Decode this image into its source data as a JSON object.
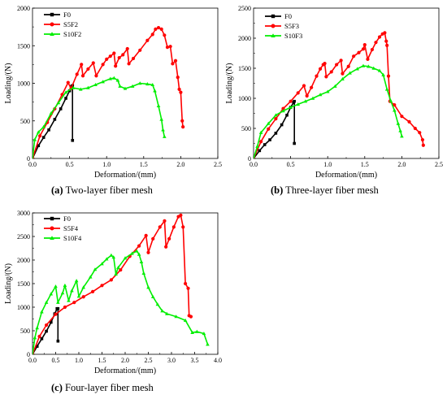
{
  "chart_data": [
    {
      "type": "line",
      "caption_label": "(a)",
      "caption_text": "Two-layer fiber mesh",
      "xlabel": "Deformation/(mm)",
      "ylabel": "Loading/(N)",
      "xlim": [
        0,
        2.5
      ],
      "ylim": [
        0,
        2000
      ],
      "xticks": [
        "0.0",
        "0.5",
        "1.0",
        "1.5",
        "2.0",
        "2.5"
      ],
      "yticks": [
        "0",
        "500",
        "1000",
        "1500",
        "2000"
      ],
      "legend_position": "top-left",
      "series": [
        {
          "name": "F0",
          "color": "#000000",
          "marker": "square",
          "points": [
            [
              0,
              0
            ],
            [
              0.08,
              170
            ],
            [
              0.15,
              280
            ],
            [
              0.22,
              380
            ],
            [
              0.3,
              520
            ],
            [
              0.38,
              660
            ],
            [
              0.45,
              800
            ],
            [
              0.5,
              900
            ],
            [
              0.53,
              960
            ],
            [
              0.54,
              970
            ],
            [
              0.54,
              240
            ]
          ]
        },
        {
          "name": "S5F2",
          "color": "#ff0000",
          "marker": "circle",
          "points": [
            [
              0,
              0
            ],
            [
              0.1,
              300
            ],
            [
              0.2,
              480
            ],
            [
              0.3,
              660
            ],
            [
              0.4,
              850
            ],
            [
              0.48,
              1010
            ],
            [
              0.52,
              930
            ],
            [
              0.6,
              1120
            ],
            [
              0.66,
              1250
            ],
            [
              0.68,
              1100
            ],
            [
              0.75,
              1190
            ],
            [
              0.82,
              1270
            ],
            [
              0.86,
              1100
            ],
            [
              0.95,
              1250
            ],
            [
              1.0,
              1320
            ],
            [
              1.05,
              1360
            ],
            [
              1.1,
              1400
            ],
            [
              1.12,
              1230
            ],
            [
              1.17,
              1340
            ],
            [
              1.22,
              1380
            ],
            [
              1.28,
              1460
            ],
            [
              1.3,
              1260
            ],
            [
              1.36,
              1330
            ],
            [
              1.45,
              1440
            ],
            [
              1.55,
              1570
            ],
            [
              1.62,
              1650
            ],
            [
              1.66,
              1720
            ],
            [
              1.7,
              1740
            ],
            [
              1.74,
              1720
            ],
            [
              1.78,
              1640
            ],
            [
              1.82,
              1480
            ],
            [
              1.86,
              1490
            ],
            [
              1.89,
              1260
            ],
            [
              1.93,
              1300
            ],
            [
              1.96,
              1080
            ],
            [
              1.98,
              920
            ],
            [
              2.0,
              880
            ],
            [
              2.02,
              500
            ],
            [
              2.03,
              420
            ]
          ]
        },
        {
          "name": "S10F2",
          "color": "#00ee00",
          "marker": "triangle",
          "points": [
            [
              0,
              0
            ],
            [
              0.03,
              250
            ],
            [
              0.08,
              350
            ],
            [
              0.15,
              420
            ],
            [
              0.25,
              600
            ],
            [
              0.35,
              740
            ],
            [
              0.45,
              880
            ],
            [
              0.55,
              940
            ],
            [
              0.65,
              920
            ],
            [
              0.75,
              940
            ],
            [
              0.85,
              980
            ],
            [
              0.95,
              1020
            ],
            [
              1.05,
              1060
            ],
            [
              1.1,
              1070
            ],
            [
              1.15,
              1040
            ],
            [
              1.18,
              960
            ],
            [
              1.25,
              930
            ],
            [
              1.35,
              960
            ],
            [
              1.45,
              1000
            ],
            [
              1.55,
              990
            ],
            [
              1.62,
              980
            ],
            [
              1.65,
              900
            ],
            [
              1.7,
              700
            ],
            [
              1.74,
              520
            ],
            [
              1.76,
              380
            ],
            [
              1.78,
              290
            ]
          ]
        }
      ]
    },
    {
      "type": "line",
      "caption_label": "(b)",
      "caption_text": "Three-layer fiber mesh",
      "xlabel": "Deformation/(mm)",
      "ylabel": "Loading/(N)",
      "xlim": [
        0,
        2.5
      ],
      "ylim": [
        0,
        2500
      ],
      "xticks": [
        "0.0",
        "0.5",
        "1.0",
        "1.5",
        "2.0",
        "2.5"
      ],
      "yticks": [
        "0",
        "500",
        "1000",
        "1500",
        "2000",
        "2500"
      ],
      "legend_position": "top-left",
      "series": [
        {
          "name": "F0",
          "color": "#000000",
          "marker": "square",
          "points": [
            [
              0,
              0
            ],
            [
              0.08,
              130
            ],
            [
              0.15,
              230
            ],
            [
              0.22,
              310
            ],
            [
              0.3,
              420
            ],
            [
              0.38,
              560
            ],
            [
              0.45,
              720
            ],
            [
              0.5,
              850
            ],
            [
              0.54,
              930
            ],
            [
              0.55,
              950
            ],
            [
              0.55,
              250
            ]
          ]
        },
        {
          "name": "S5F3",
          "color": "#ff0000",
          "marker": "circle",
          "points": [
            [
              0,
              0
            ],
            [
              0.1,
              280
            ],
            [
              0.2,
              490
            ],
            [
              0.3,
              660
            ],
            [
              0.4,
              830
            ],
            [
              0.5,
              950
            ],
            [
              0.6,
              1090
            ],
            [
              0.68,
              1210
            ],
            [
              0.72,
              1040
            ],
            [
              0.78,
              1180
            ],
            [
              0.85,
              1370
            ],
            [
              0.9,
              1490
            ],
            [
              0.94,
              1560
            ],
            [
              0.96,
              1580
            ],
            [
              0.98,
              1360
            ],
            [
              1.05,
              1440
            ],
            [
              1.12,
              1560
            ],
            [
              1.18,
              1630
            ],
            [
              1.2,
              1410
            ],
            [
              1.28,
              1530
            ],
            [
              1.35,
              1700
            ],
            [
              1.42,
              1760
            ],
            [
              1.48,
              1820
            ],
            [
              1.5,
              1890
            ],
            [
              1.54,
              1650
            ],
            [
              1.6,
              1810
            ],
            [
              1.65,
              1930
            ],
            [
              1.7,
              2020
            ],
            [
              1.74,
              2070
            ],
            [
              1.77,
              2090
            ],
            [
              1.79,
              1950
            ],
            [
              1.8,
              1880
            ],
            [
              1.82,
              1370
            ],
            [
              1.84,
              950
            ],
            [
              1.9,
              890
            ],
            [
              2.0,
              700
            ],
            [
              2.1,
              610
            ],
            [
              2.18,
              500
            ],
            [
              2.24,
              430
            ],
            [
              2.28,
              310
            ],
            [
              2.29,
              220
            ]
          ]
        },
        {
          "name": "S10F3",
          "color": "#00ee00",
          "marker": "triangle",
          "points": [
            [
              0,
              0
            ],
            [
              0.05,
              200
            ],
            [
              0.1,
              430
            ],
            [
              0.2,
              580
            ],
            [
              0.3,
              720
            ],
            [
              0.4,
              790
            ],
            [
              0.5,
              850
            ],
            [
              0.6,
              900
            ],
            [
              0.7,
              950
            ],
            [
              0.8,
              1000
            ],
            [
              0.9,
              1060
            ],
            [
              1.0,
              1110
            ],
            [
              1.1,
              1200
            ],
            [
              1.2,
              1320
            ],
            [
              1.3,
              1420
            ],
            [
              1.4,
              1490
            ],
            [
              1.48,
              1540
            ],
            [
              1.55,
              1530
            ],
            [
              1.62,
              1500
            ],
            [
              1.7,
              1460
            ],
            [
              1.75,
              1390
            ],
            [
              1.8,
              1150
            ],
            [
              1.85,
              960
            ],
            [
              1.9,
              800
            ],
            [
              1.95,
              580
            ],
            [
              1.98,
              460
            ],
            [
              2.0,
              370
            ]
          ]
        }
      ]
    },
    {
      "type": "line",
      "caption_label": "(c)",
      "caption_text": "Four-layer fiber mesh",
      "xlabel": "Deformation/(mm)",
      "ylabel": "Loading/(N)",
      "xlim": [
        0,
        4.0
      ],
      "ylim": [
        0,
        3000
      ],
      "xticks": [
        "0.0",
        "0.5",
        "1.0",
        "1.5",
        "2.0",
        "2.5",
        "3.0",
        "3.5",
        "4.0"
      ],
      "yticks": [
        "0",
        "500",
        "1000",
        "1500",
        "2000",
        "2500",
        "3000"
      ],
      "legend_position": "top-left",
      "series": [
        {
          "name": "F0",
          "color": "#000000",
          "marker": "square",
          "points": [
            [
              0,
              0
            ],
            [
              0.1,
              170
            ],
            [
              0.2,
              330
            ],
            [
              0.3,
              490
            ],
            [
              0.4,
              680
            ],
            [
              0.48,
              860
            ],
            [
              0.53,
              970
            ],
            [
              0.55,
              970
            ],
            [
              0.55,
              280
            ]
          ]
        },
        {
          "name": "S5F4",
          "color": "#ff0000",
          "marker": "circle",
          "points": [
            [
              0,
              0
            ],
            [
              0.15,
              380
            ],
            [
              0.3,
              620
            ],
            [
              0.5,
              850
            ],
            [
              0.7,
              1000
            ],
            [
              0.9,
              1100
            ],
            [
              1.1,
              1220
            ],
            [
              1.3,
              1330
            ],
            [
              1.5,
              1460
            ],
            [
              1.7,
              1580
            ],
            [
              1.9,
              1790
            ],
            [
              2.1,
              2080
            ],
            [
              2.3,
              2300
            ],
            [
              2.45,
              2520
            ],
            [
              2.5,
              2160
            ],
            [
              2.6,
              2450
            ],
            [
              2.75,
              2700
            ],
            [
              2.85,
              2830
            ],
            [
              2.88,
              2280
            ],
            [
              2.95,
              2450
            ],
            [
              3.05,
              2700
            ],
            [
              3.15,
              2920
            ],
            [
              3.2,
              2950
            ],
            [
              3.25,
              2700
            ],
            [
              3.3,
              1500
            ],
            [
              3.36,
              1400
            ],
            [
              3.38,
              820
            ],
            [
              3.42,
              800
            ]
          ]
        },
        {
          "name": "S10F4",
          "color": "#00ee00",
          "marker": "triangle",
          "points": [
            [
              0,
              0
            ],
            [
              0.05,
              350
            ],
            [
              0.1,
              560
            ],
            [
              0.2,
              900
            ],
            [
              0.3,
              1100
            ],
            [
              0.4,
              1280
            ],
            [
              0.5,
              1440
            ],
            [
              0.55,
              1100
            ],
            [
              0.65,
              1300
            ],
            [
              0.7,
              1460
            ],
            [
              0.78,
              1140
            ],
            [
              0.85,
              1350
            ],
            [
              0.95,
              1560
            ],
            [
              1.0,
              1230
            ],
            [
              1.1,
              1420
            ],
            [
              1.25,
              1640
            ],
            [
              1.35,
              1800
            ],
            [
              1.5,
              1920
            ],
            [
              1.6,
              2020
            ],
            [
              1.7,
              2100
            ],
            [
              1.75,
              2060
            ],
            [
              1.8,
              1700
            ],
            [
              1.85,
              1840
            ],
            [
              2.0,
              2040
            ],
            [
              2.15,
              2140
            ],
            [
              2.25,
              2190
            ],
            [
              2.3,
              2120
            ],
            [
              2.35,
              1960
            ],
            [
              2.4,
              1720
            ],
            [
              2.5,
              1420
            ],
            [
              2.6,
              1220
            ],
            [
              2.7,
              1060
            ],
            [
              2.8,
              920
            ],
            [
              2.9,
              860
            ],
            [
              3.1,
              800
            ],
            [
              3.3,
              720
            ],
            [
              3.45,
              460
            ],
            [
              3.55,
              480
            ],
            [
              3.7,
              440
            ],
            [
              3.78,
              210
            ]
          ]
        }
      ]
    }
  ]
}
